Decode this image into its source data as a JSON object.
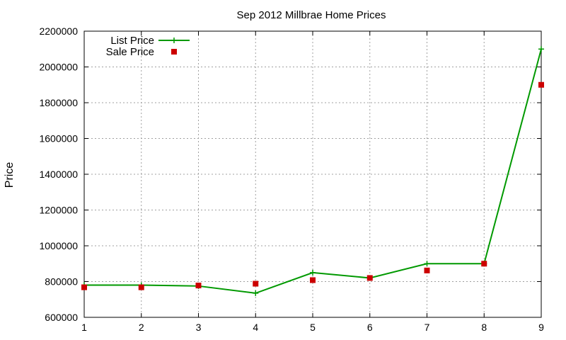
{
  "chart_data": {
    "type": "line",
    "title": "Sep 2012 Millbrae Home Prices",
    "xlabel": "",
    "ylabel": "Price",
    "x": [
      1,
      2,
      3,
      4,
      5,
      6,
      7,
      8,
      9
    ],
    "xlim": [
      1,
      9
    ],
    "ylim": [
      600000,
      2200000
    ],
    "xticks": [
      "1",
      "2",
      "3",
      "4",
      "5",
      "6",
      "7",
      "8",
      "9"
    ],
    "yticks": [
      "600000",
      "800000",
      "1000000",
      "1200000",
      "1400000",
      "1600000",
      "1800000",
      "2000000",
      "2200000"
    ],
    "grid": true,
    "legend_position": "top-left",
    "series": [
      {
        "name": "List Price",
        "style": "line-with-plus-markers",
        "color": "#009900",
        "values": [
          780000,
          780000,
          775000,
          735000,
          850000,
          820000,
          900000,
          900000,
          2100000
        ]
      },
      {
        "name": "Sale Price",
        "style": "square-points",
        "color": "#cc0000",
        "values": [
          768000,
          768000,
          778000,
          788000,
          808000,
          820000,
          862000,
          900000,
          1900000
        ]
      }
    ]
  }
}
